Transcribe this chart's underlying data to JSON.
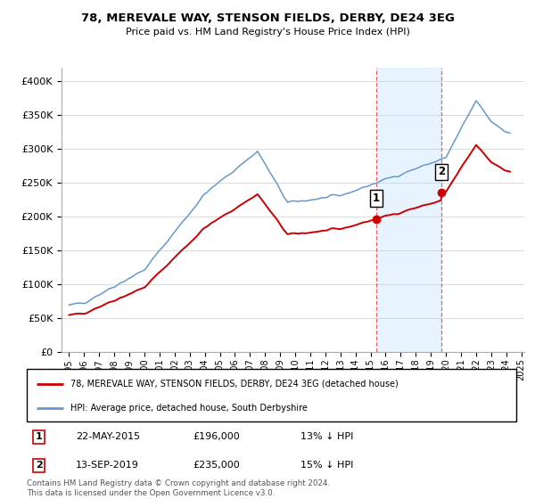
{
  "title": "78, MEREVALE WAY, STENSON FIELDS, DERBY, DE24 3EG",
  "subtitle": "Price paid vs. HM Land Registry's House Price Index (HPI)",
  "ytick_values": [
    0,
    50000,
    100000,
    150000,
    200000,
    250000,
    300000,
    350000,
    400000
  ],
  "ylim": [
    0,
    420000
  ],
  "sale1_date": "22-MAY-2015",
  "sale1_price": 196000,
  "sale1_pct": "13%",
  "sale2_date": "13-SEP-2019",
  "sale2_price": 235000,
  "sale2_pct": "15%",
  "legend_label1": "78, MEREVALE WAY, STENSON FIELDS, DERBY, DE24 3EG (detached house)",
  "legend_label2": "HPI: Average price, detached house, South Derbyshire",
  "line1_color": "#cc0000",
  "line2_color": "#6699cc",
  "shade_color": "#ddeeff",
  "footnote": "Contains HM Land Registry data © Crown copyright and database right 2024.\nThis data is licensed under the Open Government Licence v3.0.",
  "sale1_x": 2015.38,
  "sale2_x": 2019.71,
  "xlim_start": 1994.5,
  "xlim_end": 2025.2,
  "xtick_years": [
    1995,
    1996,
    1997,
    1998,
    1999,
    2000,
    2001,
    2002,
    2003,
    2004,
    2005,
    2006,
    2007,
    2008,
    2009,
    2010,
    2011,
    2012,
    2013,
    2014,
    2015,
    2016,
    2017,
    2018,
    2019,
    2020,
    2021,
    2022,
    2023,
    2024,
    2025
  ]
}
